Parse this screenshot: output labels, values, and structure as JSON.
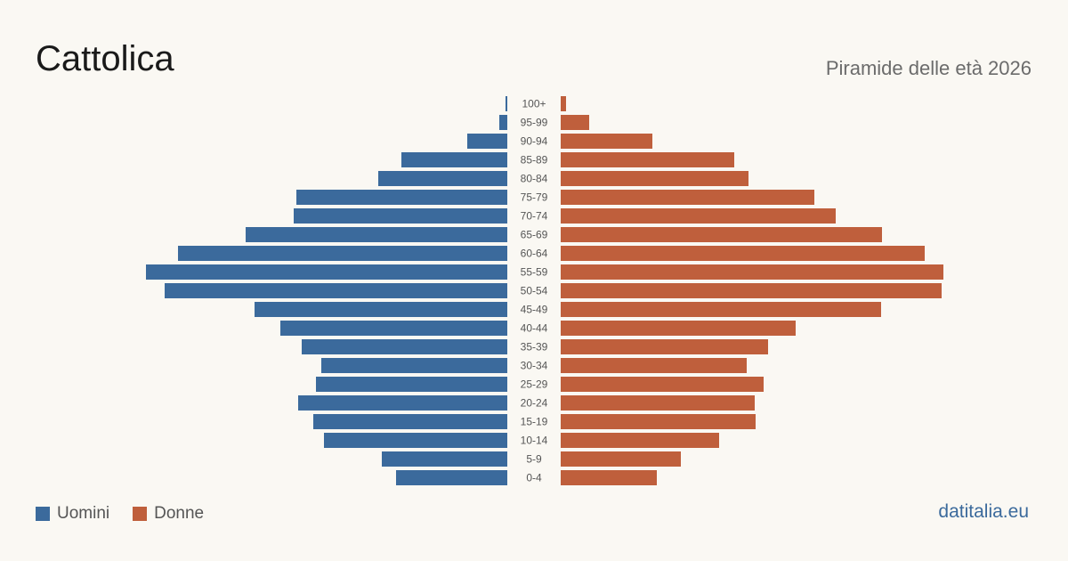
{
  "header": {
    "title": "Cattolica",
    "subtitle": "Piramide delle età 2026"
  },
  "legend": {
    "men_label": "Uomini",
    "women_label": "Donne"
  },
  "brand": "datitalia.eu",
  "colors": {
    "men": "#3b6a9c",
    "women": "#bf5f3c",
    "background": "#faf8f3",
    "age_label": "#555555"
  },
  "chart_data": {
    "type": "bar",
    "orientation": "horizontal-population-pyramid",
    "categories": [
      "100+",
      "95-99",
      "90-94",
      "85-89",
      "80-84",
      "75-79",
      "70-74",
      "65-69",
      "60-64",
      "55-59",
      "50-54",
      "45-49",
      "40-44",
      "35-39",
      "30-34",
      "25-29",
      "20-24",
      "15-19",
      "10-14",
      "5-9",
      "0-4"
    ],
    "series": [
      {
        "name": "Uomini",
        "values": [
          2,
          9,
          45,
          119,
          145,
          237,
          240,
          294,
          370,
          406,
          385,
          284,
          255,
          231,
          209,
          215,
          235,
          218,
          206,
          141,
          125
        ]
      },
      {
        "name": "Donne",
        "values": [
          6,
          32,
          103,
          195,
          211,
          285,
          309,
          361,
          409,
          430,
          428,
          360,
          264,
          233,
          209,
          228,
          218,
          219,
          178,
          135,
          108
        ]
      }
    ],
    "xlim": [
      0,
      430
    ],
    "grid": false,
    "legend_position": "bottom-left"
  }
}
